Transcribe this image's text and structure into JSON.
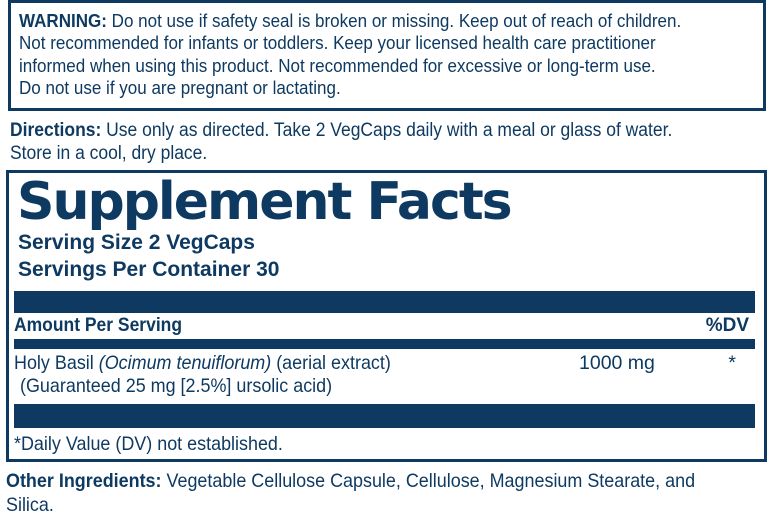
{
  "colors": {
    "navy": "#0e3a62",
    "background": "#ffffff"
  },
  "warning": {
    "label": "WARNING:",
    "line1_rest": " Do not use if safety seal is broken or missing. Keep out of reach of children.",
    "line2": "Not recommended for infants or toddlers. Keep your licensed health care practitioner",
    "line3": "informed when using this product. Not recommended for excessive or long-term use.",
    "line4": "Do not use if you are pregnant or lactating."
  },
  "directions": {
    "label": "Directions:",
    "line1_rest": " Use only as directed. Take 2 VegCaps daily with a meal or glass of water.",
    "line2": "Store in a cool, dry place."
  },
  "supplement_facts": {
    "title": "Supplement Facts",
    "serving_size": "Serving Size 2 VegCaps",
    "servings_per_container": "Servings Per Container 30",
    "column_header_left": "Amount Per Serving",
    "column_header_right": "%DV",
    "ingredient": {
      "name_part1": "Holy Basil ",
      "name_latin": "(Ocimum tenuiflorum)",
      "name_part2": " (aerial extract)",
      "amount": "1000 mg",
      "daily_value": "*",
      "detail_line": "(Guaranteed 25 mg [2.5%] ursolic acid)"
    },
    "footnote": "*Daily Value (DV) not established."
  },
  "other_ingredients": {
    "label": "Other Ingredients:",
    "line1_rest": " Vegetable Cellulose Capsule, Cellulose, Magnesium Stearate, and",
    "line2": "Silica."
  }
}
